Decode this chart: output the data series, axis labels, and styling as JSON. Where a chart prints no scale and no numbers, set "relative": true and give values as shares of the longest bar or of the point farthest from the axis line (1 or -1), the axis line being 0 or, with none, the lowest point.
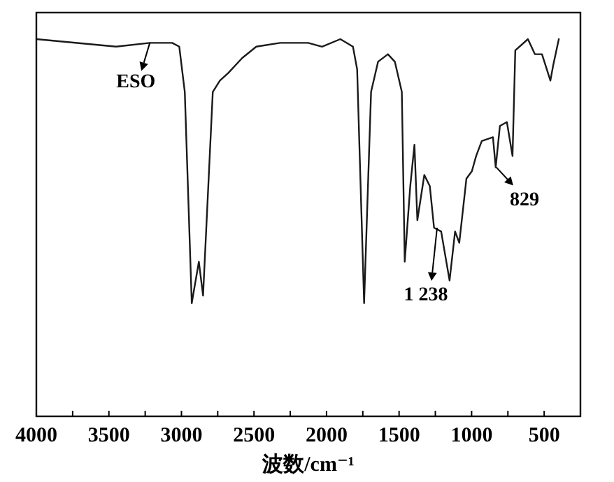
{
  "chart_data": {
    "type": "line",
    "xlabel": "波数/cm⁻¹",
    "relative": true,
    "xlim": [
      4000,
      250
    ],
    "xticks": [
      4000,
      {
        "value": 3750,
        "label": null
      },
      3500,
      {
        "value": 3250,
        "label": null
      },
      3000,
      {
        "value": 2750,
        "label": null
      },
      2500,
      {
        "value": 2250,
        "label": null
      },
      2000,
      {
        "value": 1750,
        "label": null
      },
      1500,
      {
        "value": 1250,
        "label": null
      },
      1000,
      {
        "value": 750,
        "label": null
      },
      500
    ],
    "x": [
      4000,
      3450,
      3218,
      3064,
      3015,
      2977,
      2929,
      2880,
      2851,
      2784,
      2735,
      2678,
      2581,
      2484,
      2320,
      2127,
      2031,
      1905,
      1818,
      1789,
      1741,
      1693,
      1645,
      1577,
      1529,
      1481,
      1461,
      1423,
      1394,
      1374,
      1326,
      1288,
      1259,
      1210,
      1152,
      1114,
      1085,
      1036,
      998,
      969,
      930,
      853,
      834,
      805,
      757,
      718,
      699,
      612,
      564,
      515,
      457,
      438,
      399
    ],
    "series": [
      {
        "color": "#1a1a1a",
        "values": [
          1.0,
          0.98,
          0.99,
          0.99,
          0.98,
          0.86,
          0.3,
          0.41,
          0.32,
          0.86,
          0.89,
          0.91,
          0.95,
          0.98,
          0.99,
          0.99,
          0.98,
          1.0,
          0.98,
          0.92,
          0.3,
          0.86,
          0.94,
          0.96,
          0.94,
          0.86,
          0.41,
          0.61,
          0.72,
          0.52,
          0.64,
          0.61,
          0.5,
          0.49,
          0.36,
          0.49,
          0.46,
          0.63,
          0.65,
          0.69,
          0.73,
          0.74,
          0.66,
          0.77,
          0.78,
          0.69,
          0.97,
          1.0,
          0.96,
          0.96,
          0.89,
          0.93,
          1.0
        ]
      }
    ],
    "annotations": [
      {
        "text": "ESO",
        "x": 3218,
        "y": 0.99
      },
      {
        "text": "1 238",
        "x": 1238,
        "y": 0.5
      },
      {
        "text": "829",
        "x": 829,
        "y": 0.66
      }
    ]
  }
}
